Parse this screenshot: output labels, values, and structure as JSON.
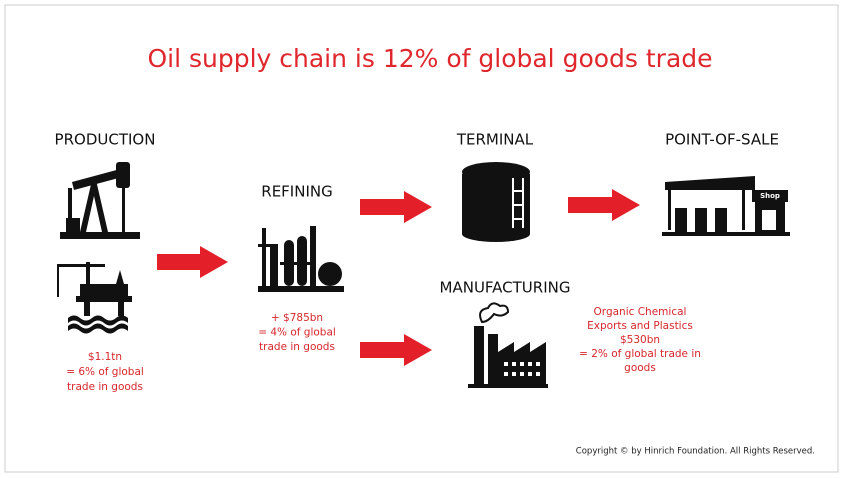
{
  "title": "Oil supply chain is 12% of global goods trade",
  "stages": {
    "production": {
      "label": "PRODUCTION",
      "note": [
        "$1.1tn",
        "= 6% of global",
        "trade in goods"
      ]
    },
    "refining": {
      "label": "REFINING",
      "note": [
        "+ $785bn",
        "= 4% of global",
        "trade in goods"
      ]
    },
    "terminal": {
      "label": "TERMINAL"
    },
    "point_of_sale": {
      "label": "POINT-OF-SALE",
      "shop_sign": "Shop"
    },
    "manufacturing": {
      "label": "MANUFACTURING",
      "note": [
        "Organic Chemical",
        "Exports and Plastics",
        "$530bn",
        "= 2% of global trade in",
        "goods"
      ]
    }
  },
  "footer": "Copyright © by Hinrich Foundation. All Rights Reserved."
}
